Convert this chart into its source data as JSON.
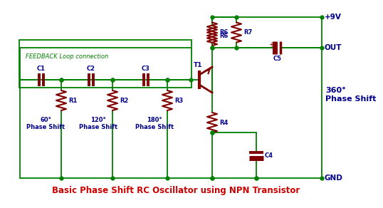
{
  "title": "Basic Phase Shift RC Oscillator using NPN Transistor",
  "title_color": "#cc0000",
  "title_fontsize": 8.5,
  "bg_color": "#ffffff",
  "wire_color": "#008000",
  "component_color": "#800000",
  "label_color": "#00008B",
  "text_color": "#008000",
  "feedback_text": "FEEDBACK Loop connection",
  "phase_labels": [
    "60°\nPhase Shift",
    "120°\nPhase Shift",
    "180°\nPhase Shift",
    "360°\nPhase Shift"
  ],
  "supply_label": "+9V",
  "out_label": "OUT",
  "gnd_label": "GND"
}
